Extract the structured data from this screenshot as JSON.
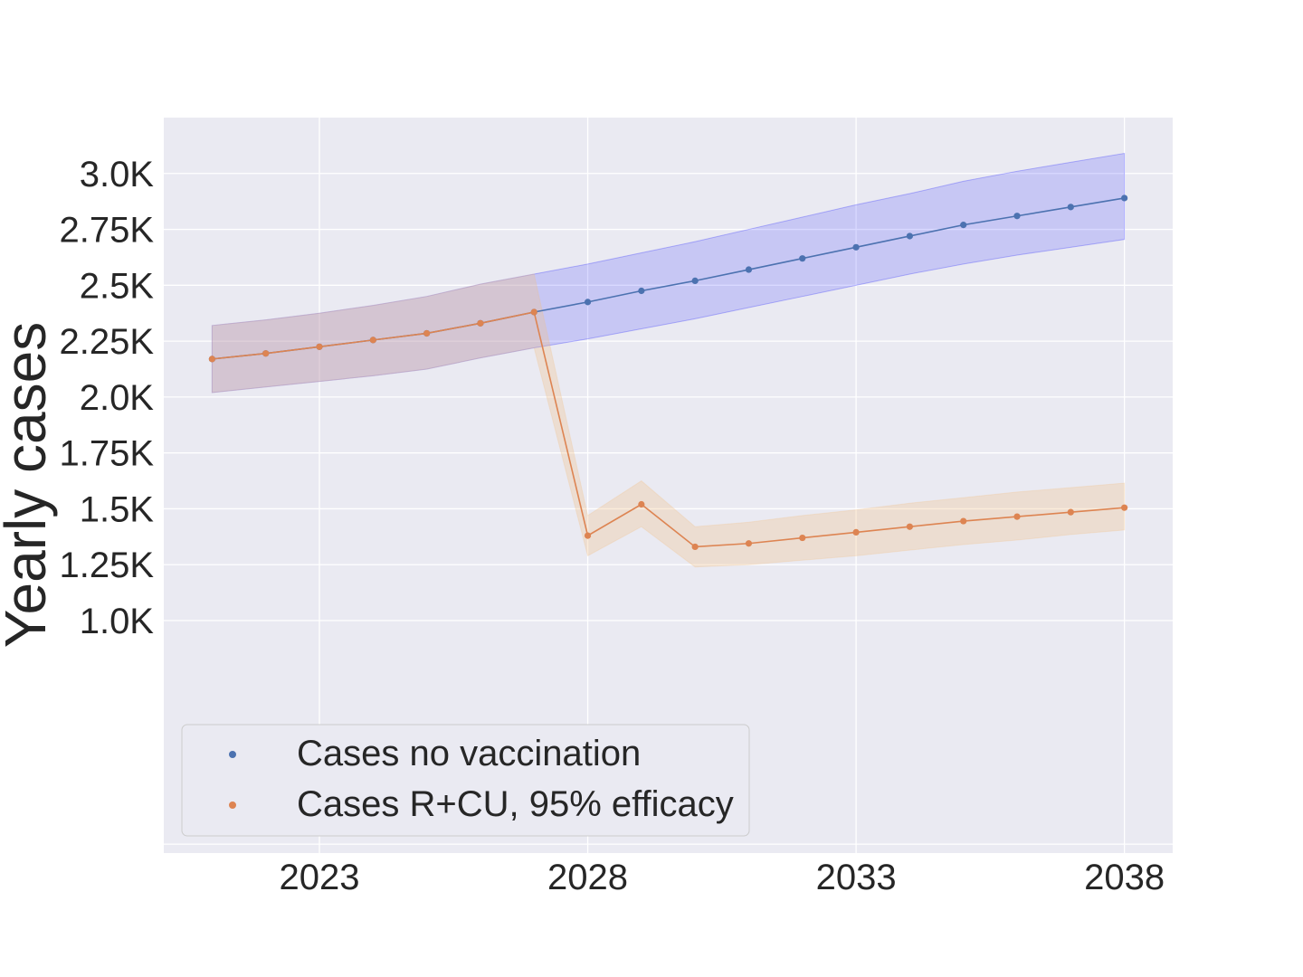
{
  "chart_data": {
    "type": "line",
    "title": "",
    "xlabel": "",
    "ylabel": "Yearly cases",
    "x": [
      2021,
      2022,
      2023,
      2024,
      2025,
      2026,
      2027,
      2028,
      2029,
      2030,
      2031,
      2032,
      2033,
      2034,
      2035,
      2036,
      2037,
      2038
    ],
    "xlim": [
      2020.1,
      2038.9
    ],
    "ylim": [
      -40,
      3250
    ],
    "grid": true,
    "legend_position": "lower-left",
    "xticks": [
      2023,
      2028,
      2033,
      2038
    ],
    "xtick_labels": [
      "2023",
      "2028",
      "2033",
      "2038"
    ],
    "yticks": [
      1000,
      1250,
      1500,
      1750,
      2000,
      2250,
      2500,
      2750,
      3000
    ],
    "ytick_labels": [
      "1.0K",
      "1.25K",
      "1.5K",
      "1.75K",
      "2.0K",
      "2.25K",
      "2.5K",
      "2.75K",
      "3.0K"
    ],
    "series": [
      {
        "name": "Cases no vaccination",
        "color": "#4c72b0",
        "band_color": "#0000ff",
        "values": [
          2170,
          2195,
          2225,
          2255,
          2285,
          2330,
          2380,
          2425,
          2475,
          2520,
          2570,
          2620,
          2670,
          2720,
          2770,
          2810,
          2850,
          2890
        ],
        "lower": [
          2020,
          2045,
          2070,
          2095,
          2125,
          2175,
          2220,
          2260,
          2305,
          2350,
          2400,
          2450,
          2500,
          2550,
          2595,
          2635,
          2670,
          2705
        ],
        "upper": [
          2320,
          2345,
          2375,
          2410,
          2450,
          2505,
          2550,
          2595,
          2645,
          2695,
          2750,
          2805,
          2860,
          2910,
          2965,
          3010,
          3050,
          3090
        ]
      },
      {
        "name": "Cases R+CU, 95% efficacy",
        "color": "#dd8452",
        "band_color": "#f2bf85",
        "values": [
          2170,
          2195,
          2225,
          2255,
          2285,
          2330,
          2380,
          1380,
          1520,
          1330,
          1345,
          1370,
          1395,
          1420,
          1445,
          1465,
          1485,
          1505
        ],
        "lower": [
          2020,
          2045,
          2070,
          2095,
          2125,
          2175,
          2220,
          1290,
          1420,
          1240,
          1250,
          1270,
          1290,
          1315,
          1340,
          1360,
          1385,
          1405
        ],
        "upper": [
          2320,
          2345,
          2375,
          2410,
          2450,
          2505,
          2550,
          1470,
          1625,
          1420,
          1440,
          1470,
          1495,
          1525,
          1550,
          1575,
          1595,
          1615
        ]
      }
    ]
  }
}
